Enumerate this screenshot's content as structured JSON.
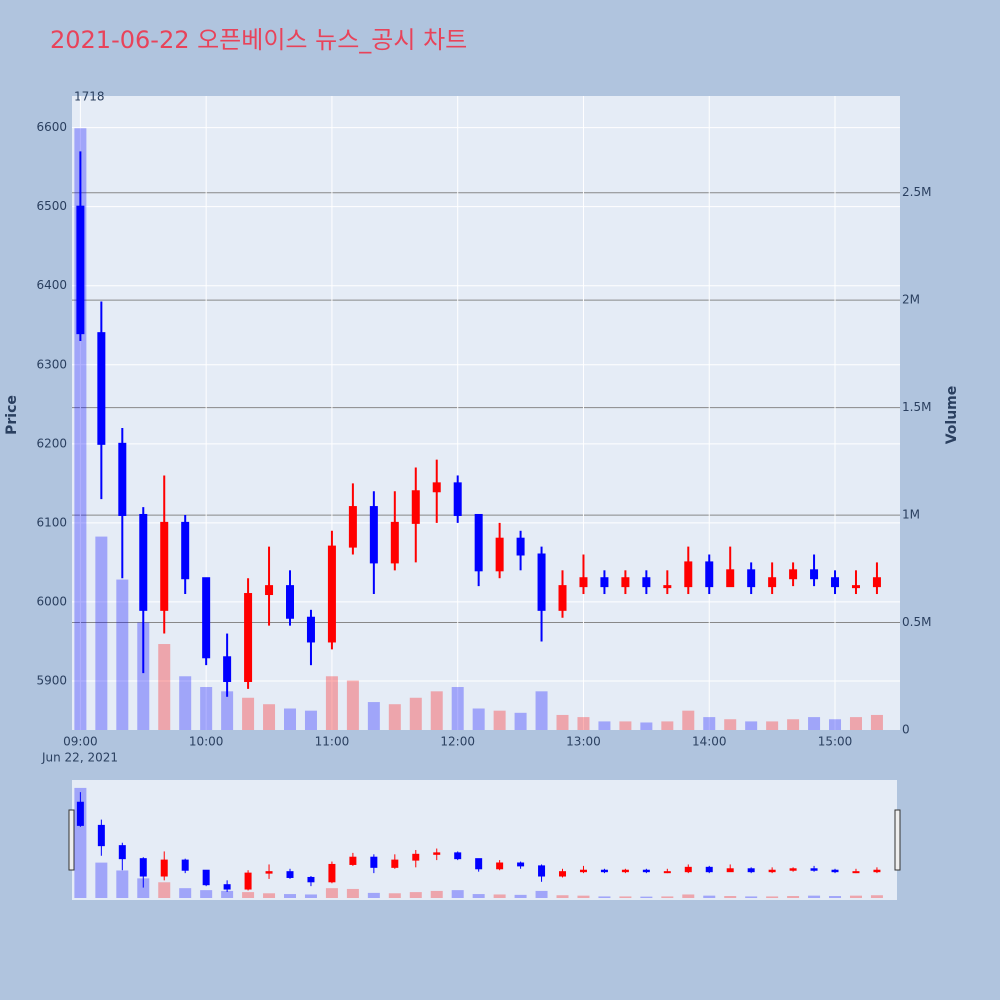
{
  "chart_data": {
    "type": "candlestick",
    "title": "2021-06-22 오픈베이스 뉴스_공시 차트",
    "annotation": "1718",
    "y_title": "Price",
    "y2_title": "Volume",
    "x_date_label": "Jun 22, 2021",
    "x": [
      "09:00",
      "09:10",
      "09:20",
      "09:30",
      "09:40",
      "09:50",
      "10:00",
      "10:10",
      "10:20",
      "10:30",
      "10:40",
      "10:50",
      "11:00",
      "11:10",
      "11:20",
      "11:30",
      "11:40",
      "11:50",
      "12:00",
      "12:10",
      "12:20",
      "12:30",
      "12:40",
      "12:50",
      "13:00",
      "13:10",
      "13:20",
      "13:30",
      "13:40",
      "13:50",
      "14:00",
      "14:10",
      "14:20",
      "14:30",
      "14:40",
      "14:50",
      "15:00",
      "15:10",
      "15:20"
    ],
    "open": [
      6500,
      6340,
      6200,
      6110,
      5990,
      6100,
      6030,
      5930,
      5900,
      6010,
      6020,
      5980,
      5950,
      6070,
      6120,
      6050,
      6100,
      6140,
      6150,
      6110,
      6040,
      6080,
      6060,
      5990,
      6020,
      6030,
      6020,
      6030,
      6020,
      6020,
      6050,
      6020,
      6040,
      6020,
      6030,
      6040,
      6030,
      6020,
      6020
    ],
    "high": [
      6570,
      6380,
      6220,
      6120,
      6160,
      6110,
      6030,
      5960,
      6030,
      6070,
      6040,
      5990,
      6090,
      6150,
      6140,
      6140,
      6170,
      6180,
      6160,
      6110,
      6100,
      6090,
      6070,
      6040,
      6060,
      6040,
      6040,
      6040,
      6040,
      6070,
      6060,
      6070,
      6050,
      6050,
      6050,
      6060,
      6040,
      6040,
      6050
    ],
    "low": [
      6330,
      6130,
      6030,
      5910,
      5960,
      6010,
      5920,
      5880,
      5890,
      5970,
      5970,
      5920,
      5940,
      6060,
      6010,
      6040,
      6050,
      6100,
      6100,
      6020,
      6030,
      6040,
      5950,
      5980,
      6010,
      6010,
      6010,
      6010,
      6010,
      6010,
      6010,
      6020,
      6010,
      6010,
      6020,
      6020,
      6010,
      6010,
      6010
    ],
    "close": [
      6340,
      6200,
      6110,
      5990,
      6100,
      6030,
      5930,
      5900,
      6010,
      6020,
      5980,
      5950,
      6070,
      6120,
      6050,
      6100,
      6140,
      6150,
      6110,
      6040,
      6080,
      6060,
      5990,
      6020,
      6030,
      6020,
      6030,
      6020,
      6020,
      6050,
      6020,
      6040,
      6020,
      6030,
      6040,
      6030,
      6020,
      6020,
      6030
    ],
    "volume": [
      2800000,
      900000,
      700000,
      500000,
      400000,
      250000,
      200000,
      180000,
      150000,
      120000,
      100000,
      90000,
      250000,
      230000,
      130000,
      120000,
      150000,
      180000,
      200000,
      100000,
      90000,
      80000,
      180000,
      70000,
      60000,
      40000,
      40000,
      35000,
      40000,
      90000,
      60000,
      50000,
      40000,
      40000,
      50000,
      60000,
      50000,
      60000,
      70000
    ],
    "increasing_color": "#ff0000",
    "decreasing_color": "#0000ff",
    "xlim": [
      "08:56",
      "15:31"
    ],
    "xticks": [
      "09:00",
      "10:00",
      "11:00",
      "12:00",
      "13:00",
      "14:00",
      "15:00"
    ],
    "ylim": [
      5838,
      6640
    ],
    "yticks": [
      5900,
      6000,
      6100,
      6200,
      6300,
      6400,
      6500,
      6600
    ],
    "y2lim": [
      0,
      2950000
    ],
    "y2ticks": [
      0,
      {
        "value": 500000,
        "label": "0.5M"
      },
      {
        "value": 1000000,
        "label": "1M"
      },
      {
        "value": 1500000,
        "label": "1.5M"
      },
      {
        "value": 2000000,
        "label": "2M"
      },
      {
        "value": 2500000,
        "label": "2.5M"
      }
    ],
    "grid": true,
    "rangeslider": true
  }
}
